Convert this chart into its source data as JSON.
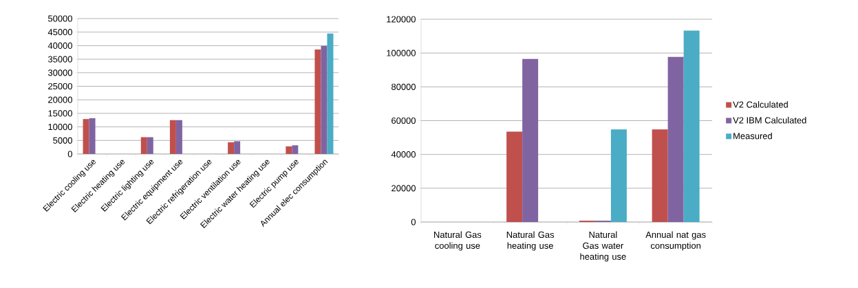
{
  "chart_data": [
    {
      "type": "bar",
      "categories": [
        "Electric cooling use",
        "Electric heating use",
        "Electric lighting use",
        "Electric equipment use",
        "Electric refrigeration use",
        "Electric ventilation use",
        "Electric water heating use",
        "Electric pump use",
        "Annual elec consumption"
      ],
      "series": [
        {
          "color": "#c0504d",
          "values": [
            12900,
            0,
            6200,
            12500,
            0,
            4300,
            0,
            2800,
            38600
          ]
        },
        {
          "color": "#8064a2",
          "values": [
            13200,
            0,
            6200,
            12500,
            0,
            4700,
            0,
            3200,
            39900
          ]
        },
        {
          "color": "#4bacc6",
          "values": [
            null,
            null,
            null,
            null,
            null,
            null,
            null,
            null,
            44500
          ]
        }
      ],
      "ylim": [
        0,
        50000
      ],
      "yticks": [
        0,
        5000,
        10000,
        15000,
        20000,
        25000,
        30000,
        35000,
        40000,
        45000,
        50000
      ],
      "grid": "y",
      "legend": false
    },
    {
      "type": "bar",
      "categories": [
        "Natural Gas cooling use",
        "Natural Gas heating use",
        "Natural Gas water heating use",
        "Annual nat gas consumption"
      ],
      "series": [
        {
          "name": "V2 Calculated",
          "color": "#c0504d",
          "values": [
            0,
            53500,
            800,
            54800
          ]
        },
        {
          "name": "V2 IBM Calculated",
          "color": "#8064a2",
          "values": [
            0,
            96500,
            800,
            97700
          ]
        },
        {
          "name": "Measured",
          "color": "#4bacc6",
          "values": [
            null,
            null,
            54800,
            113300
          ]
        }
      ],
      "ylim": [
        0,
        120000
      ],
      "yticks": [
        0,
        20000,
        40000,
        60000,
        80000,
        100000,
        120000
      ],
      "grid": "y",
      "legend": "right"
    }
  ]
}
